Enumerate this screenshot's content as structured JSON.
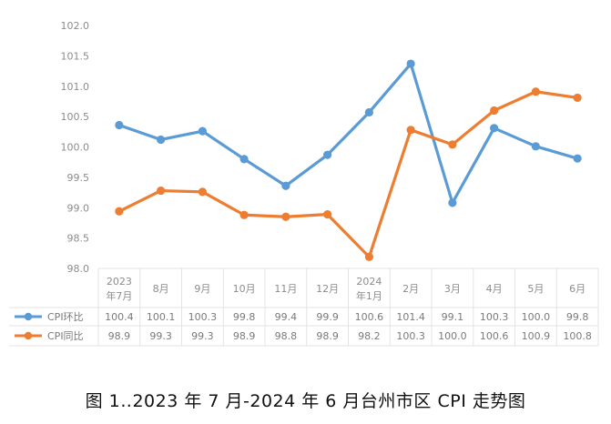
{
  "chart_data": {
    "type": "line",
    "categories": [
      [
        "2023",
        "年7月"
      ],
      [
        "8月"
      ],
      [
        "9月"
      ],
      [
        "10月"
      ],
      [
        "11月"
      ],
      [
        "12月"
      ],
      [
        "2024",
        "年1月"
      ],
      [
        "2月"
      ],
      [
        "3月"
      ],
      [
        "4月"
      ],
      [
        "5月"
      ],
      [
        "6月"
      ]
    ],
    "series": [
      {
        "name": "CPI环比",
        "color": "#5b9bd5",
        "values": [
          100.36,
          100.12,
          100.26,
          99.8,
          99.36,
          99.87,
          100.57,
          101.37,
          99.08,
          100.31,
          100.01,
          99.81
        ],
        "labels": [
          "100.4",
          "100.1",
          "100.3",
          "99.8",
          "99.4",
          "99.9",
          "100.6",
          "101.4",
          "99.1",
          "100.3",
          "100.0",
          "99.8"
        ]
      },
      {
        "name": "CPI同比",
        "color": "#ed7d31",
        "values": [
          98.94,
          99.28,
          99.26,
          98.88,
          98.85,
          98.89,
          98.19,
          100.28,
          100.04,
          100.6,
          100.91,
          100.81
        ],
        "labels": [
          "98.9",
          "99.3",
          "99.3",
          "98.9",
          "98.8",
          "98.9",
          "98.2",
          "100.3",
          "100.0",
          "100.6",
          "100.9",
          "100.8"
        ]
      }
    ],
    "y_ticks": [
      "102.0",
      "101.5",
      "101.0",
      "100.5",
      "100.0",
      "99.5",
      "99.0",
      "98.5",
      "98.0"
    ],
    "ylim": [
      98.0,
      102.0
    ],
    "legend": "data-table-left",
    "grid": false
  },
  "caption": "图 1‥2023 年 7 月-2024 年 6 月台州市区 CPI 走势图"
}
